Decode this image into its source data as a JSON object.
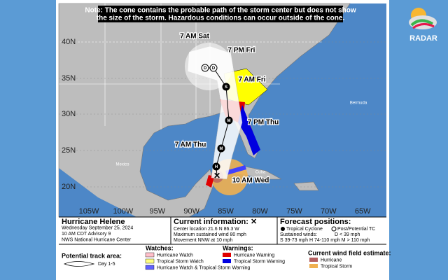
{
  "note": [
    "Note: The cone contains the probable path of the storm center but does not show",
    "the size of the storm. Hazardous conditions can occur outside of the cone."
  ],
  "map": {
    "latitudes": [
      "40N",
      "35N",
      "30N",
      "25N",
      "20N"
    ],
    "longitudes": [
      "105W",
      "100W",
      "95W",
      "90W",
      "85W",
      "80W",
      "75W",
      "70W",
      "65W"
    ],
    "times": [
      "7 AM Sat",
      "7 PM Fri",
      "7 AM Fri",
      "7 PM Thu",
      "7 AM Thu",
      "10 AM Wed"
    ],
    "markers": [
      "D",
      "D",
      "S",
      "M",
      "M",
      "H"
    ],
    "places": [
      "Bermuda",
      "Mexico",
      "Cuba"
    ]
  },
  "legend": {
    "storm": [
      "Hurricane Helene",
      "Wednesday September 25, 2024",
      "10 AM CDT Advisory 9",
      "NWS National Hurricane Center"
    ],
    "current_title": "Current information: ✕",
    "current": [
      "Center location 21.6 N 86.3 W",
      "Maximum sustained wind 80 mph",
      "Movement NNW at 10 mph"
    ],
    "forecast_title": "Forecast positions:",
    "forecast": [
      "Tropical Cyclone",
      "Post/Potential TC",
      "Sustained winds:",
      "D < 39 mph",
      "S 39-73 mph  H 74-110 mph  M > 110 mph"
    ],
    "track_title": "Potential track area:",
    "track": "Day 1-5",
    "watches_title": "Watches:",
    "watches": [
      "Hurricane Watch",
      "Tropical Storm Watch",
      "Hurricane Watch & Tropical Storm Warning"
    ],
    "warnings_title": "Warnings:",
    "warnings": [
      "Hurricane Warning",
      "Tropical Storm Warning"
    ],
    "wind_title": "Current wind field estimate:",
    "wind": [
      "Hurricane",
      "Tropical Storm"
    ]
  },
  "logo": "RADAR"
}
